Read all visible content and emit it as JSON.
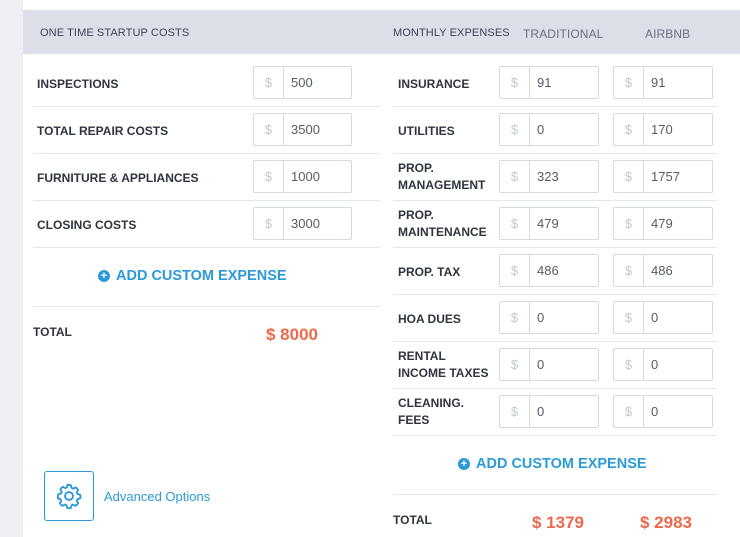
{
  "startup": {
    "header": "ONE TIME STARTUP COSTS",
    "items": [
      {
        "label": "INSPECTIONS",
        "currency": "$",
        "value": "500"
      },
      {
        "label": "TOTAL REPAIR COSTS",
        "currency": "$",
        "value": "3500"
      },
      {
        "label": "FURNITURE & APPLIANCES",
        "currency": "$",
        "value": "1000"
      },
      {
        "label": "CLOSING COSTS",
        "currency": "$",
        "value": "3000"
      }
    ],
    "add_label": "ADD CUSTOM EXPENSE",
    "total_label": "TOTAL",
    "total_value": "$ 8000"
  },
  "monthly": {
    "header": "MONTHLY EXPENSES",
    "col_traditional": "TRADITIONAL",
    "col_airbnb": "AIRBNB",
    "items": [
      {
        "label": "INSURANCE",
        "traditional": "91",
        "airbnb": "91"
      },
      {
        "label": "UTILITIES",
        "traditional": "0",
        "airbnb": "170"
      },
      {
        "label": "PROP. MANAGEMENT",
        "traditional": "323",
        "airbnb": "1757"
      },
      {
        "label": "PROP. MAINTENANCE",
        "traditional": "479",
        "airbnb": "479"
      },
      {
        "label": "PROP. TAX",
        "traditional": "486",
        "airbnb": "486"
      },
      {
        "label": "HOA DUES",
        "traditional": "0",
        "airbnb": "0"
      },
      {
        "label": "RENTAL INCOME TAXES",
        "traditional": "0",
        "airbnb": "0"
      },
      {
        "label": "CLEANING. FEES",
        "traditional": "0",
        "airbnb": "0"
      }
    ],
    "currency": "$",
    "add_label": "ADD CUSTOM EXPENSE",
    "total_label": "TOTAL",
    "total_traditional": "$ 1379",
    "total_airbnb": "$ 2983"
  },
  "advanced": {
    "label": "Advanced Options",
    "icon": "gear-icon"
  },
  "colors": {
    "accent": "#2c9ad8",
    "total": "#ec6a4c",
    "header_bg": "#dcdfe8"
  }
}
